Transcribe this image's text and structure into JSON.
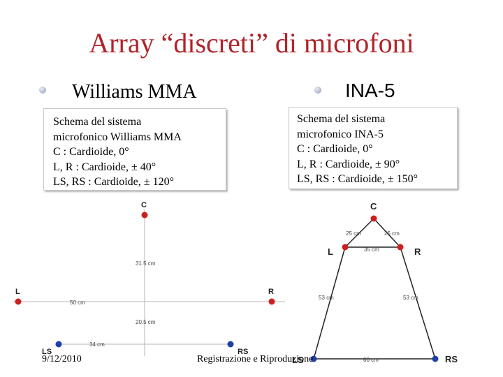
{
  "slide": {
    "title": "Array “discreti” di microfoni",
    "left_heading": "Williams MMA",
    "right_heading": "INA-5",
    "date": "9/12/2010",
    "footer_text": "Registrazione e Riproduzione"
  },
  "williams": {
    "box_title_1": "Schema del sistema",
    "box_title_2": "microfonico Williams MMA",
    "line_c": "C : Cardioide, 0°",
    "line_lr": "L, R : Cardioide, ± 40°",
    "line_lsrs": "LS, RS : Cardioide,  ± 120°",
    "labels": {
      "c": "C",
      "l": "L",
      "r": "R",
      "ls": "LS",
      "rs": "RS"
    },
    "dims": {
      "c_to_center": "31.5 cm",
      "l_to_center": "50 cm",
      "center_to_back": "20.5 cm",
      "back_half": "34 cm"
    }
  },
  "ina5": {
    "box_title_1": "Schema del sistema",
    "box_title_2": "microfonico INA-5",
    "line_c": "C : Cardioide, 0°",
    "line_lr": "L, R : Cardioide, ± 90°",
    "line_lsrs": "LS, RS : Cardioide,  ± 150°",
    "labels": {
      "c": "C",
      "l": "L",
      "r": "R",
      "ls": "LS",
      "rs": "RS"
    },
    "dims": {
      "c_to_l": "25 cm",
      "c_to_r": "25 cm",
      "l_to_r": "35 cm",
      "l_to_ls": "53 cm",
      "r_to_rs": "53 cm",
      "ls_to_rs": "60 cm"
    }
  },
  "colors": {
    "title": "#b0242a",
    "front_mic": "#cc1f1f",
    "rear_mic": "#1f3fa8"
  }
}
